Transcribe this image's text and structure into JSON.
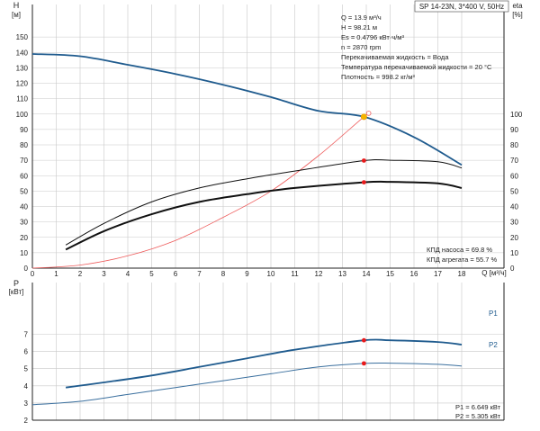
{
  "colors": {
    "head_curve": "#1f5b8e",
    "system_curve": "#ee5b5b",
    "efficiency_curves": "#111111",
    "p1_curve": "#1f5b8e",
    "p2_curve": "#3a6f9e",
    "duty_point": "#e8191b",
    "duty_point_head": "#f5b400",
    "grid": "#c8c8c8",
    "curve_label": "#1f5b8e"
  },
  "chart_data": [
    {
      "type": "line",
      "title": "SP 14-23N, 3*400 V, 50Hz",
      "y_left_label": [
        "H",
        "[м]"
      ],
      "y_right_label": [
        "eta",
        "[%]"
      ],
      "x_label": "Q [м³/ч]",
      "xlim": [
        0,
        20
      ],
      "xticks": [
        0,
        1,
        2,
        3,
        4,
        5,
        6,
        7,
        8,
        9,
        10,
        11,
        12,
        13,
        14,
        15,
        16,
        17,
        18
      ],
      "ylim_left": [
        0,
        160
      ],
      "yticks_left": [
        0,
        10,
        20,
        30,
        40,
        50,
        60,
        70,
        80,
        90,
        100,
        110,
        120,
        130,
        140,
        150
      ],
      "ylim_right": [
        0,
        160
      ],
      "yticks_right": [
        0,
        10,
        20,
        30,
        40,
        50,
        60,
        70,
        80,
        90,
        100
      ],
      "grid": true,
      "info": [
        "Q = 13.9 м³/ч",
        "H = 98.21 м",
        "Es = 0.4796 кВт·ч/м³",
        "n = 2870 rpm",
        "Перекачиваемая жидкость = Вода",
        "Температура перекачиваемой жидкости = 20 °C",
        "Плотность = 998.2 кг/м³"
      ],
      "efficiency_text": [
        "КПД насоса = 69.8 %",
        "КПД агрегата = 55.7 %"
      ],
      "series": [
        {
          "role": "head",
          "x": [
            0,
            2,
            4,
            6,
            8,
            10,
            12,
            13.9,
            16,
            18
          ],
          "values": [
            139,
            137.5,
            132,
            126,
            119,
            111,
            102,
            98.2,
            85,
            67
          ]
        },
        {
          "role": "system",
          "x": [
            0,
            2,
            4,
            6,
            8,
            10,
            12,
            13.9,
            14.1
          ],
          "values": [
            0,
            2,
            8,
            18,
            33,
            50,
            73,
            98.2,
            100
          ]
        },
        {
          "role": "pump_efficiency",
          "x": [
            1.4,
            3,
            5,
            7,
            9,
            11,
            13.9,
            15,
            17,
            18
          ],
          "values": [
            15,
            29,
            43,
            52,
            58,
            63,
            69.8,
            70,
            69,
            65
          ]
        },
        {
          "role": "unit_efficiency",
          "x": [
            1.4,
            3,
            5,
            7,
            9,
            11,
            13.9,
            15,
            17,
            18
          ],
          "values": [
            12,
            24,
            35,
            43,
            48,
            52,
            55.7,
            56,
            55,
            52
          ]
        }
      ],
      "duty_point": {
        "q": 13.9,
        "h": 98.21,
        "pump_eff": 69.8,
        "unit_eff": 55.7
      }
    },
    {
      "type": "line",
      "y_label": [
        "P",
        "[кВт]"
      ],
      "xlim": [
        0,
        20
      ],
      "ylim": [
        2,
        8
      ],
      "yticks": [
        2,
        3,
        4,
        5,
        6,
        7
      ],
      "grid": true,
      "power_text": [
        "P1 = 6.649 кВт",
        "P2 = 5.305 кВт"
      ],
      "series": [
        {
          "name": "P1",
          "x": [
            1.4,
            3,
            5,
            7,
            9,
            11,
            13.9,
            15,
            17,
            18
          ],
          "values": [
            3.9,
            4.2,
            4.6,
            5.1,
            5.6,
            6.1,
            6.649,
            6.65,
            6.55,
            6.4
          ]
        },
        {
          "name": "P2",
          "x": [
            0,
            2,
            4,
            6,
            8,
            10,
            12,
            13.9,
            15,
            17,
            18
          ],
          "values": [
            2.9,
            3.1,
            3.5,
            3.9,
            4.3,
            4.7,
            5.1,
            5.305,
            5.32,
            5.25,
            5.15
          ]
        }
      ]
    }
  ]
}
